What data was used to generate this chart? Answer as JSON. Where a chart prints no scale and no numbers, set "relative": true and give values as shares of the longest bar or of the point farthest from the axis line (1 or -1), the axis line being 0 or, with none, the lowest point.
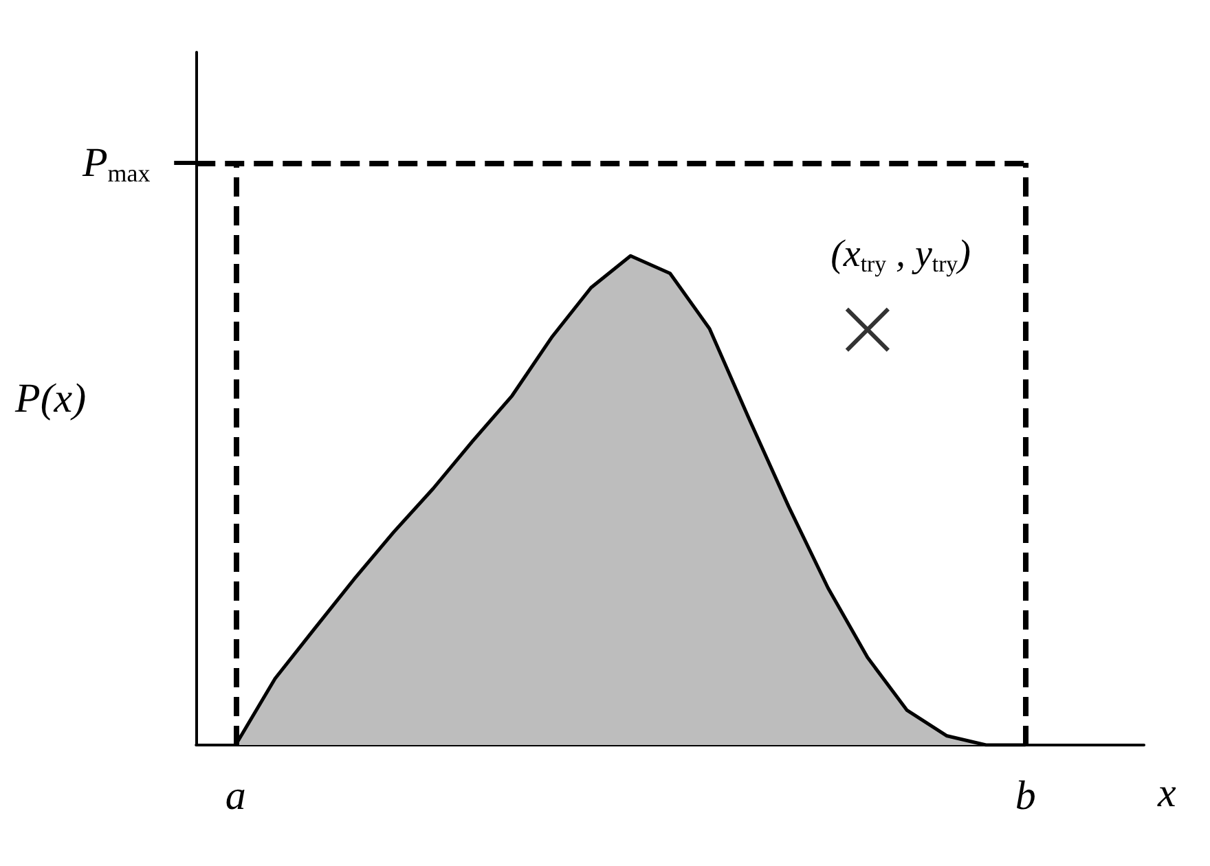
{
  "chart_data": {
    "type": "area",
    "relative": true,
    "xlabel": "x",
    "ylabel": "P(x)",
    "tick_labels": "x",
    "categories": [
      null,
      "a",
      null,
      null,
      null,
      null,
      null,
      null,
      null,
      null,
      null,
      null,
      null,
      null,
      null,
      null,
      null,
      null,
      null,
      null,
      null,
      "b",
      null,
      null,
      null
    ],
    "ref_lines": [
      {
        "axis": "y",
        "value": 1.19,
        "label": "P$_{max}$",
        "line_style": "dashed"
      },
      {
        "axis": "x",
        "value": "a",
        "line_style": "dashed"
      },
      {
        "axis": "x",
        "value": "b",
        "line_style": "dashed"
      }
    ],
    "annotations": [
      "(x$_{try}$ , y$_{try}$)"
    ],
    "series": [
      {
        "color": "#bdbdbd",
        "values": [
          null,
          0,
          0.136,
          0.238,
          0.339,
          0.435,
          0.524,
          0.621,
          0.714,
          0.833,
          0.935,
          1,
          0.964,
          0.851,
          0.667,
          0.488,
          0.321,
          0.179,
          0.071,
          0.019,
          0,
          0,
          null,
          null,
          null
        ]
      },
      {
        "type": "scatter",
        "color": "#000000",
        "marker": "cross",
        "values": [
          null,
          null,
          null,
          null,
          null,
          null,
          null,
          null,
          null,
          null,
          null,
          null,
          null,
          null,
          null,
          null,
          null,
          0.849,
          null,
          null,
          null,
          null,
          null,
          null,
          null
        ]
      }
    ]
  }
}
